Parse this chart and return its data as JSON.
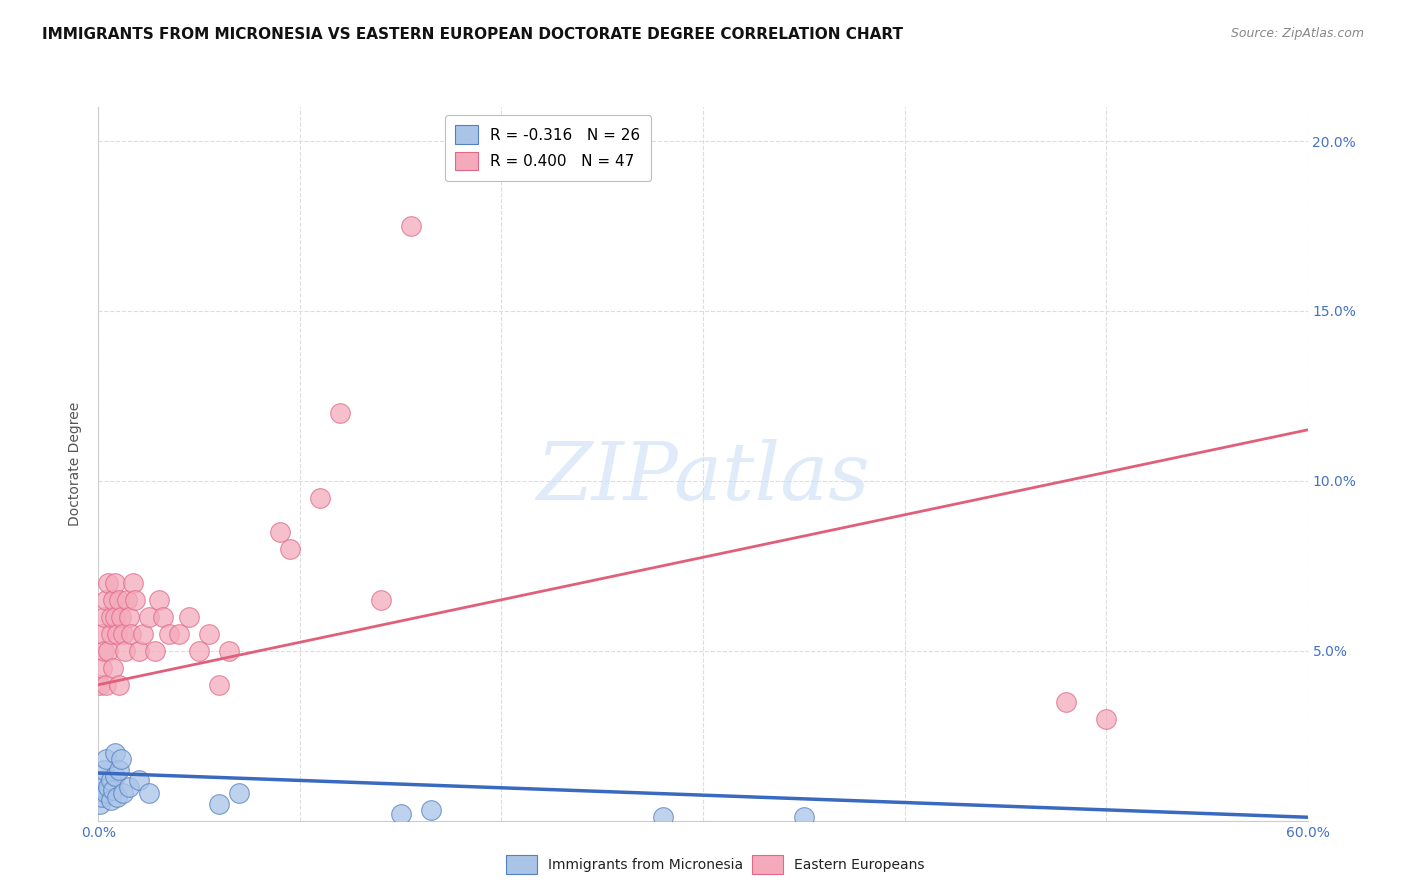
{
  "title": "IMMIGRANTS FROM MICRONESIA VS EASTERN EUROPEAN DOCTORATE DEGREE CORRELATION CHART",
  "source": "Source: ZipAtlas.com",
  "ylabel": "Doctorate Degree",
  "xlim": [
    0,
    0.6
  ],
  "ylim": [
    0,
    0.21
  ],
  "xticks": [
    0.0,
    0.1,
    0.2,
    0.3,
    0.4,
    0.5,
    0.6
  ],
  "yticks": [
    0.0,
    0.05,
    0.1,
    0.15,
    0.2
  ],
  "blue_R": -0.316,
  "blue_N": 26,
  "pink_R": 0.4,
  "pink_N": 47,
  "blue_color": "#aac4e8",
  "pink_color": "#f4aabb",
  "blue_edge_color": "#5580c0",
  "pink_edge_color": "#e06888",
  "blue_line_color": "#3a6abf",
  "pink_line_color": "#e0607a",
  "legend_label_blue": "Immigrants from Micronesia",
  "legend_label_pink": "Eastern Europeans",
  "watermark": "ZIPatlas",
  "background_color": "#ffffff",
  "grid_color": "#dddddd",
  "title_fontsize": 11,
  "axis_label_fontsize": 10,
  "tick_fontsize": 10,
  "blue_points_x": [
    0.001,
    0.002,
    0.002,
    0.003,
    0.003,
    0.004,
    0.004,
    0.005,
    0.006,
    0.006,
    0.007,
    0.008,
    0.008,
    0.009,
    0.01,
    0.011,
    0.012,
    0.015,
    0.02,
    0.025,
    0.06,
    0.07,
    0.15,
    0.165,
    0.28,
    0.35
  ],
  "blue_points_y": [
    0.005,
    0.007,
    0.01,
    0.012,
    0.015,
    0.008,
    0.018,
    0.01,
    0.006,
    0.012,
    0.009,
    0.013,
    0.02,
    0.007,
    0.015,
    0.018,
    0.008,
    0.01,
    0.012,
    0.008,
    0.005,
    0.008,
    0.002,
    0.003,
    0.001,
    0.001
  ],
  "pink_points_x": [
    0.001,
    0.002,
    0.002,
    0.003,
    0.003,
    0.004,
    0.004,
    0.005,
    0.005,
    0.006,
    0.006,
    0.007,
    0.007,
    0.008,
    0.008,
    0.009,
    0.01,
    0.01,
    0.011,
    0.012,
    0.013,
    0.014,
    0.015,
    0.016,
    0.017,
    0.018,
    0.02,
    0.022,
    0.025,
    0.028,
    0.03,
    0.032,
    0.035,
    0.04,
    0.045,
    0.05,
    0.055,
    0.06,
    0.065,
    0.09,
    0.095,
    0.11,
    0.12,
    0.14,
    0.155,
    0.48,
    0.5
  ],
  "pink_points_y": [
    0.04,
    0.045,
    0.055,
    0.05,
    0.06,
    0.04,
    0.065,
    0.07,
    0.05,
    0.055,
    0.06,
    0.065,
    0.045,
    0.07,
    0.06,
    0.055,
    0.04,
    0.065,
    0.06,
    0.055,
    0.05,
    0.065,
    0.06,
    0.055,
    0.07,
    0.065,
    0.05,
    0.055,
    0.06,
    0.05,
    0.065,
    0.06,
    0.055,
    0.055,
    0.06,
    0.05,
    0.055,
    0.04,
    0.05,
    0.085,
    0.08,
    0.095,
    0.12,
    0.065,
    0.175,
    0.035,
    0.03
  ],
  "pink_line_x0": 0.0,
  "pink_line_y0": 0.04,
  "pink_line_x1": 0.6,
  "pink_line_y1": 0.115,
  "blue_line_x0": 0.0,
  "blue_line_y0": 0.014,
  "blue_line_x1": 0.6,
  "blue_line_y1": 0.001
}
